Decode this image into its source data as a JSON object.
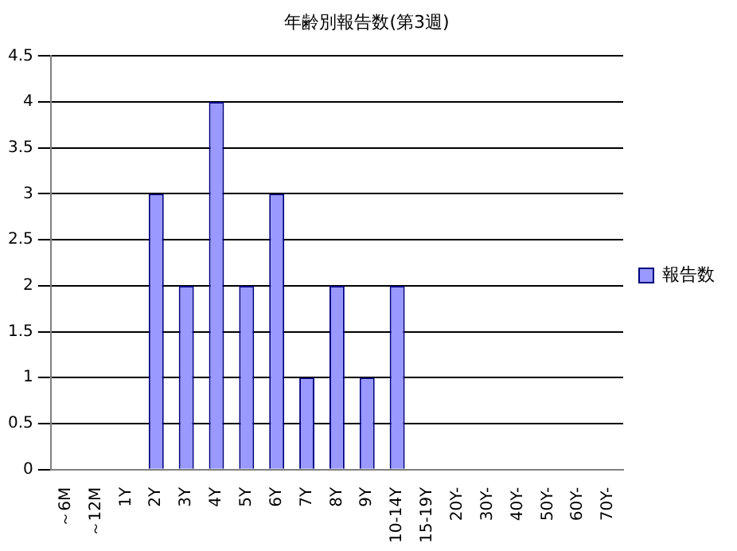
{
  "chart_data": {
    "type": "bar",
    "title": "年齢別報告数(第3週)",
    "categories": [
      "～6M",
      "～12M",
      "1Y",
      "2Y",
      "3Y",
      "4Y",
      "5Y",
      "6Y",
      "7Y",
      "8Y",
      "9Y",
      "10-14Y",
      "15-19Y",
      "20Y-",
      "30Y-",
      "40Y-",
      "50Y-",
      "60Y-",
      "70Y-"
    ],
    "series": [
      {
        "name": "報告数",
        "color": "#9999ff",
        "values": [
          0,
          0,
          0,
          3,
          2,
          4,
          2,
          3,
          1,
          2,
          1,
          2,
          0,
          0,
          0,
          0,
          0,
          0,
          0
        ]
      }
    ],
    "ylim": [
      0,
      4.5
    ],
    "yticks": [
      0,
      0.5,
      1,
      1.5,
      2,
      2.5,
      3,
      3.5,
      4,
      4.5
    ],
    "grid": "y",
    "legend": "right"
  }
}
